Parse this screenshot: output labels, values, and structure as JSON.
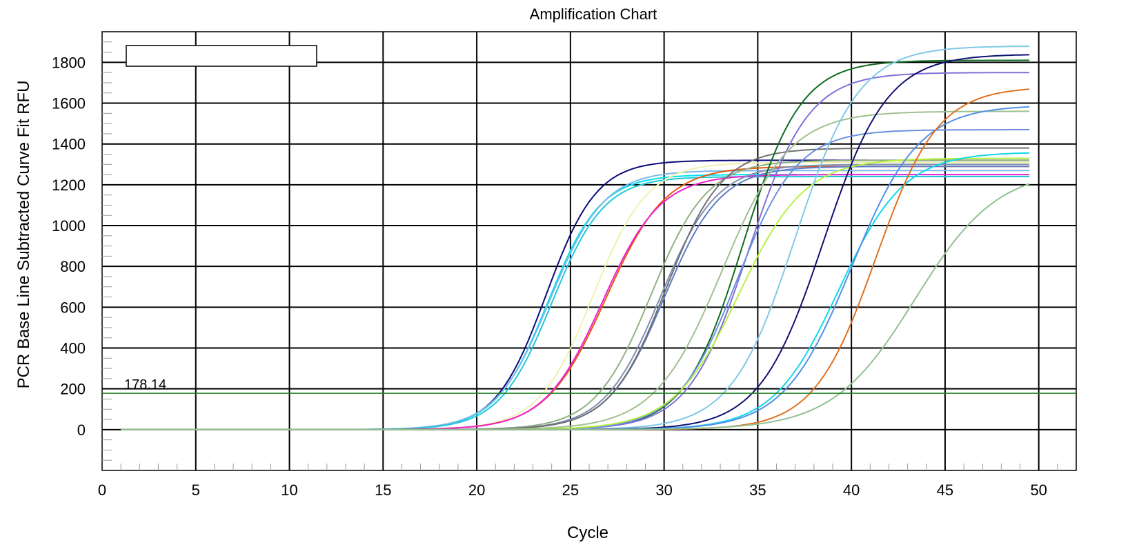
{
  "chart_data": {
    "type": "line",
    "title": "Amplification Chart",
    "xlabel": "Cycle",
    "ylabel": "PCR Base Line Subtracted Curve Fit RFU",
    "xlim": [
      0,
      52
    ],
    "ylim": [
      -200,
      1950
    ],
    "x_ticks": [
      "0",
      "5",
      "10",
      "15",
      "20",
      "25",
      "30",
      "35",
      "40",
      "45",
      "50"
    ],
    "y_ticks": [
      "0",
      "200",
      "400",
      "600",
      "800",
      "1000",
      "1200",
      "1400",
      "1600",
      "1800"
    ],
    "grid": true,
    "legend": "top-left",
    "threshold": {
      "value": 178.14,
      "label": "178.14",
      "color": "#208020"
    },
    "curves": {
      "x_start": 1,
      "x_end": 49.5,
      "baseline": 0,
      "params": [
        {
          "plateau": 1320,
          "midpoint": 23.7,
          "slope": 1.35,
          "color": "#0a0a7a"
        },
        {
          "plateau": 1250,
          "midpoint": 23.8,
          "slope": 1.4,
          "color": "#00e0f0"
        },
        {
          "plateau": 1270,
          "midpoint": 23.9,
          "slope": 1.45,
          "color": "#7ab8e8"
        },
        {
          "plateau": 1240,
          "midpoint": 24.0,
          "slope": 1.4,
          "color": "#20c8d8"
        },
        {
          "plateau": 1310,
          "midpoint": 26.2,
          "slope": 1.45,
          "color": "#f0f0b0"
        },
        {
          "plateau": 1290,
          "midpoint": 26.9,
          "slope": 1.6,
          "color": "#e05a10"
        },
        {
          "plateau": 1250,
          "midpoint": 26.7,
          "slope": 1.55,
          "color": "#f020d0"
        },
        {
          "plateau": 1320,
          "midpoint": 29.3,
          "slope": 1.5,
          "color": "#90b080"
        },
        {
          "plateau": 1300,
          "midpoint": 29.8,
          "slope": 1.5,
          "color": "#8090b0"
        },
        {
          "plateau": 1290,
          "midpoint": 30.0,
          "slope": 1.5,
          "color": "#5c7cc8"
        },
        {
          "plateau": 1380,
          "midpoint": 30.1,
          "slope": 1.5,
          "color": "#707070"
        },
        {
          "plateau": 1810,
          "midpoint": 34.2,
          "slope": 1.55,
          "color": "#0e6b1e"
        },
        {
          "plateau": 1750,
          "midpoint": 34.5,
          "slope": 1.6,
          "color": "#8070d8"
        },
        {
          "plateau": 1470,
          "midpoint": 33.9,
          "slope": 1.6,
          "color": "#6a90e0"
        },
        {
          "plateau": 1560,
          "midpoint": 33.1,
          "slope": 1.8,
          "color": "#a0c090"
        },
        {
          "plateau": 1330,
          "midpoint": 34.0,
          "slope": 1.75,
          "color": "#b8f040"
        },
        {
          "plateau": 1880,
          "midpoint": 37.0,
          "slope": 1.7,
          "color": "#80c8e8"
        },
        {
          "plateau": 1840,
          "midpoint": 38.5,
          "slope": 1.7,
          "color": "#101070"
        },
        {
          "plateau": 1360,
          "midpoint": 39.3,
          "slope": 1.75,
          "color": "#10d8e8"
        },
        {
          "plateau": 1590,
          "midpoint": 40.0,
          "slope": 1.8,
          "color": "#5090e8"
        },
        {
          "plateau": 1680,
          "midpoint": 41.3,
          "slope": 1.65,
          "color": "#e07020"
        },
        {
          "plateau": 1280,
          "midpoint": 43.4,
          "slope": 2.2,
          "color": "#90c090"
        }
      ]
    }
  }
}
